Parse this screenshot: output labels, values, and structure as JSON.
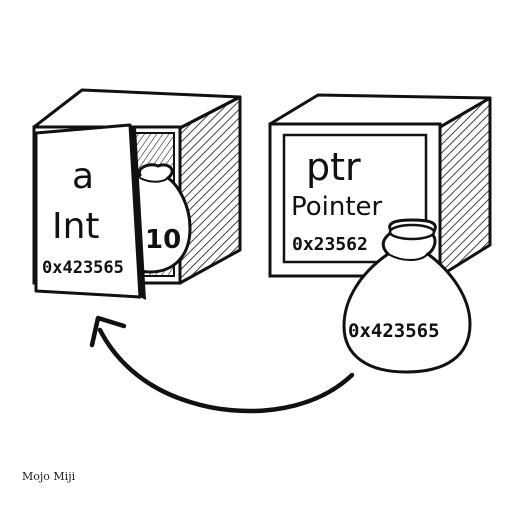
{
  "left_box": {
    "name": "a",
    "type": "Int",
    "address": "0x423565",
    "value": "10"
  },
  "right_box": {
    "name": "ptr",
    "type": "Pointer",
    "address": "0x23562",
    "stored_address": "0x423565"
  },
  "credit": "Mojo Miji",
  "colors": {
    "ink": "#111111",
    "paper": "#ffffff"
  }
}
